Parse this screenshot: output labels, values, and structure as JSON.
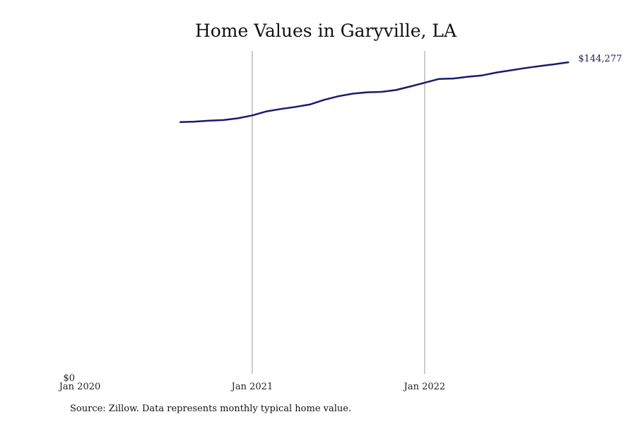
{
  "chart_data": {
    "type": "line",
    "title": "Home Values in Garyville, LA",
    "xlabel": "",
    "ylabel": "",
    "x_ticks": [
      "Jan 2020",
      "Jan 2021",
      "Jan 2022"
    ],
    "y_ticks": [
      "$0"
    ],
    "ylim": [
      0,
      146000
    ],
    "grid": "vertical lines at year ticks",
    "line_color": "#1a1a6e",
    "grid_color": "#999999",
    "end_label": "$144,277",
    "series": [
      {
        "x": [
          "2020-08",
          "2020-09",
          "2020-10",
          "2020-11",
          "2020-12",
          "2021-01",
          "2021-02",
          "2021-03",
          "2021-04",
          "2021-05",
          "2021-06",
          "2021-07",
          "2021-08",
          "2021-09",
          "2021-10",
          "2021-11",
          "2021-12",
          "2022-01",
          "2022-02",
          "2022-03",
          "2022-04",
          "2022-05",
          "2022-06",
          "2022-07",
          "2022-08",
          "2022-09",
          "2022-10",
          "2022-11"
        ],
        "values": [
          114600,
          114800,
          115200,
          115500,
          116300,
          117600,
          119400,
          120500,
          121400,
          122500,
          124600,
          126200,
          127400,
          128000,
          128200,
          129000,
          130600,
          132300,
          134000,
          134200,
          135000,
          135600,
          136900,
          137900,
          138900,
          139800,
          140600,
          141500
        ]
      }
    ]
  },
  "source": "Source: Zillow. Data represents monthly typical home value."
}
